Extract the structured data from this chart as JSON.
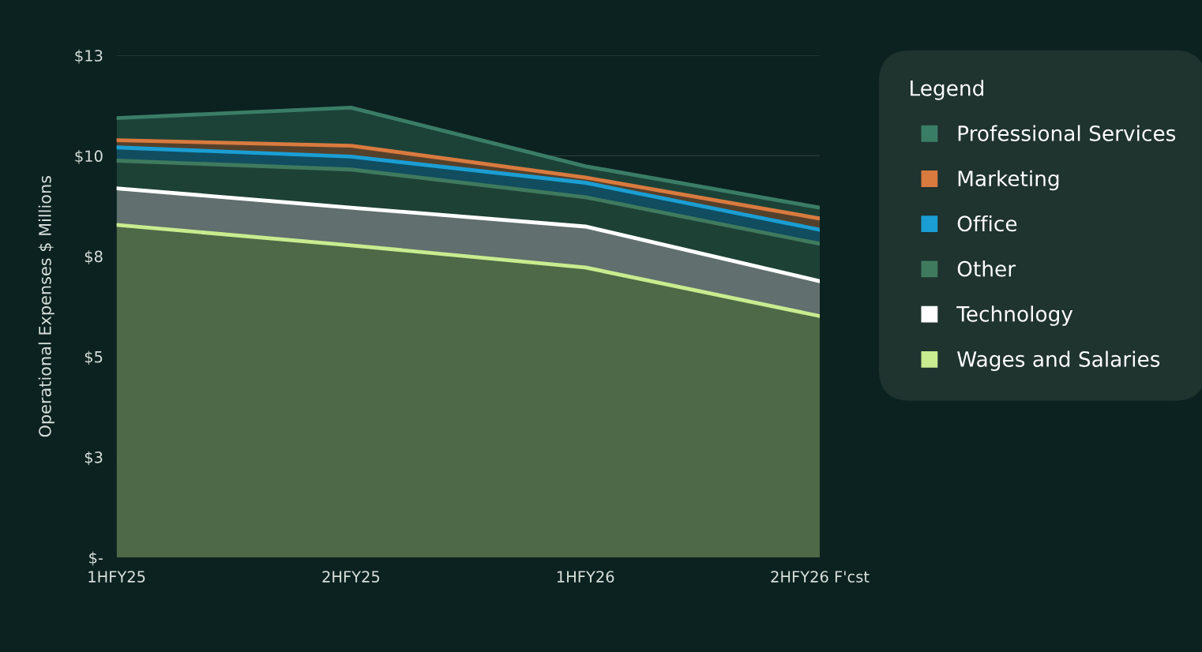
{
  "chart_data": {
    "type": "area",
    "stacked": true,
    "ylabel": "Operational Expenses $ Millions",
    "legend_title": "Legend",
    "legend": "right",
    "grid": "y",
    "categories": [
      "1HFY25",
      "2HFY25",
      "1HFY26",
      "2HFY26 F'cst"
    ],
    "ylim": [
      0,
      12.5
    ],
    "yticks": [
      {
        "value": 0,
        "label": "$-"
      },
      {
        "value": 2.5,
        "label": "$3"
      },
      {
        "value": 5,
        "label": "$5"
      },
      {
        "value": 7.5,
        "label": "$8"
      },
      {
        "value": 10,
        "label": "$10"
      },
      {
        "value": 12.5,
        "label": "$13"
      }
    ],
    "series": [
      {
        "name": "Wages and Salaries",
        "color": "#c8ec8f",
        "values": [
          8.28,
          7.77,
          7.22,
          6.01
        ]
      },
      {
        "name": "Technology",
        "color": "#ffffff",
        "values": [
          0.91,
          0.94,
          1.02,
          0.87
        ]
      },
      {
        "name": "Other",
        "color": "#3f7a5e",
        "values": [
          0.69,
          0.95,
          0.73,
          0.93
        ]
      },
      {
        "name": "Office",
        "color": "#1a9ed4",
        "values": [
          0.33,
          0.32,
          0.36,
          0.35
        ]
      },
      {
        "name": "Marketing",
        "color": "#d97a3f",
        "values": [
          0.18,
          0.27,
          0.13,
          0.28
        ]
      },
      {
        "name": "Professional Services",
        "color": "#3a7d66",
        "values": [
          0.55,
          0.95,
          0.28,
          0.27
        ]
      }
    ]
  }
}
